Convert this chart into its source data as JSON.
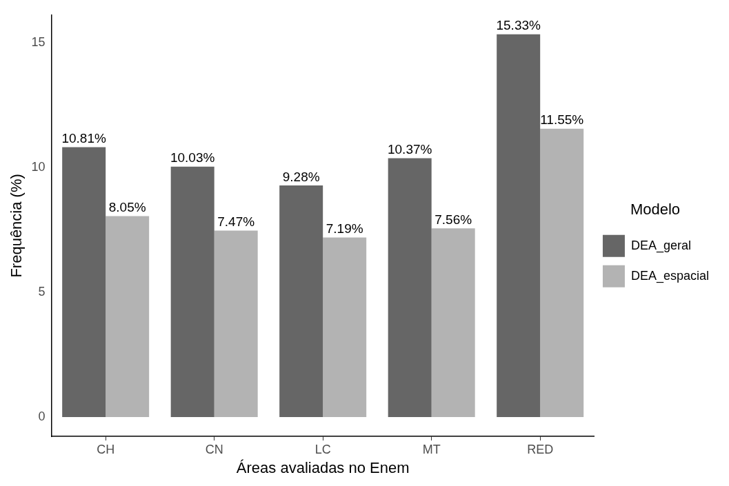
{
  "chart_data": {
    "type": "bar",
    "xlabel": "Áreas avaliadas no Enem",
    "ylabel": "Frequência (%)",
    "legend_title": "Modelo",
    "categories": [
      "CH",
      "CN",
      "LC",
      "MT",
      "RED"
    ],
    "series": [
      {
        "name": "DEA_geral",
        "color": "#666666",
        "values": [
          10.81,
          10.03,
          9.28,
          10.37,
          15.33
        ],
        "value_labels": [
          "10.81%",
          "10.03%",
          "9.28%",
          "10.37%",
          "15.33%"
        ]
      },
      {
        "name": "DEA_espacial",
        "color": "#b3b3b3",
        "values": [
          8.05,
          7.47,
          7.19,
          7.56,
          11.55
        ],
        "value_labels": [
          "8.05%",
          "7.47%",
          "7.19%",
          "7.56%",
          "11.55%"
        ]
      }
    ],
    "ylim": [
      -0.77,
      16.1
    ],
    "yticks": [
      0,
      5,
      10,
      15
    ],
    "grid": false,
    "legend": "right"
  }
}
